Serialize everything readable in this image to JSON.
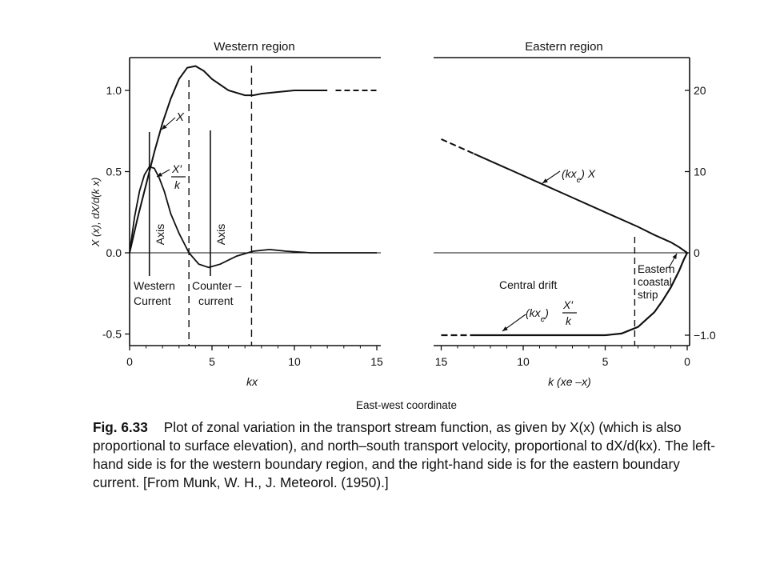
{
  "figure": {
    "shared_xlabel": "East-west coordinate",
    "caption": {
      "label": "Fig. 6.33",
      "text": "Plot of zonal variation in the transport stream function, as given by X(x) (which is also proportional to surface elevation), and north–south transport velocity, proportional to dX/d(kx). The left-hand side is for the western boundary region, and the right-hand side is for the eastern boundary current. [From Munk, W. H., J. Meteorol. (1950).]"
    }
  },
  "chart_data": [
    {
      "type": "line",
      "title": "Western region",
      "xlabel": "kx",
      "ylabel": "X (x), dX/d(k x)",
      "xlim": [
        0,
        15.5
      ],
      "ylim": [
        -0.55,
        1.15
      ],
      "xticks": [
        "0",
        "5",
        "10",
        "15"
      ],
      "yticks": [
        "-0.5",
        "0.0",
        "0.5",
        "1.0"
      ],
      "grid": false,
      "series": [
        {
          "name": "X",
          "x": [
            0,
            0.5,
            1,
            1.5,
            2,
            2.5,
            3,
            3.5,
            4,
            4.5,
            5,
            6,
            7,
            7.5,
            8,
            9,
            10,
            11,
            12,
            13,
            15
          ],
          "y": [
            0,
            0.22,
            0.42,
            0.62,
            0.8,
            0.95,
            1.07,
            1.14,
            1.15,
            1.12,
            1.07,
            1.0,
            0.97,
            0.97,
            0.98,
            0.99,
            1.0,
            1.0,
            1.0,
            1.0,
            1.0
          ]
        },
        {
          "name": "X′/k",
          "x": [
            0,
            0.3,
            0.6,
            0.9,
            1.2,
            1.5,
            1.8,
            2.1,
            2.5,
            3,
            3.6,
            4.2,
            4.8,
            5.5,
            6.5,
            7.5,
            8.5,
            9.5,
            11,
            15
          ],
          "y": [
            0,
            0.22,
            0.38,
            0.48,
            0.53,
            0.52,
            0.46,
            0.38,
            0.24,
            0.12,
            0.0,
            -0.07,
            -0.09,
            -0.07,
            -0.02,
            0.01,
            0.02,
            0.01,
            0.0,
            0.0
          ]
        }
      ],
      "markers": [
        {
          "label": "Axis",
          "kx": 1.2,
          "style": "solid"
        },
        {
          "label": "Axis",
          "kx": 4.9,
          "style": "solid"
        },
        {
          "kx": 3.6,
          "style": "dashed"
        },
        {
          "kx": 7.4,
          "style": "dashed"
        }
      ],
      "annotations": [
        "X",
        "X′",
        "k",
        "Axis",
        "Axis",
        "Western",
        "Current",
        "Counter –",
        "current"
      ]
    },
    {
      "type": "line",
      "title": "Eastern region",
      "xlabel": "k (xe –x)",
      "ylabel_right_ticks": [
        "−1.0",
        "0",
        "10",
        "20"
      ],
      "xlim": [
        15.5,
        0
      ],
      "ylim": [
        -1.4,
        24.5
      ],
      "xticks": [
        "15",
        "10",
        "5",
        "0"
      ],
      "grid": false,
      "series": [
        {
          "name": "(kxe) X",
          "x": [
            15,
            13,
            11,
            9,
            7,
            5,
            3,
            2,
            1,
            0.5,
            0
          ],
          "y": [
            14.0,
            12.2,
            10.4,
            8.6,
            6.8,
            5.0,
            3.2,
            2.2,
            1.3,
            0.7,
            0
          ]
        },
        {
          "name": "(kxe) X′/k",
          "x": [
            15,
            13,
            11,
            9,
            7,
            5,
            4,
            3,
            2,
            1.5,
            1,
            0.5,
            0.2,
            0
          ],
          "y": [
            -1.0,
            -1.0,
            -1.0,
            -1.0,
            -1.0,
            -1.0,
            -0.98,
            -0.9,
            -0.72,
            -0.58,
            -0.42,
            -0.22,
            -0.08,
            0
          ]
        }
      ],
      "markers": [
        {
          "kx": 3.2,
          "style": "dashed"
        }
      ],
      "annotations": [
        "Central drift",
        "Eastern",
        "coastal",
        "strip"
      ]
    }
  ]
}
